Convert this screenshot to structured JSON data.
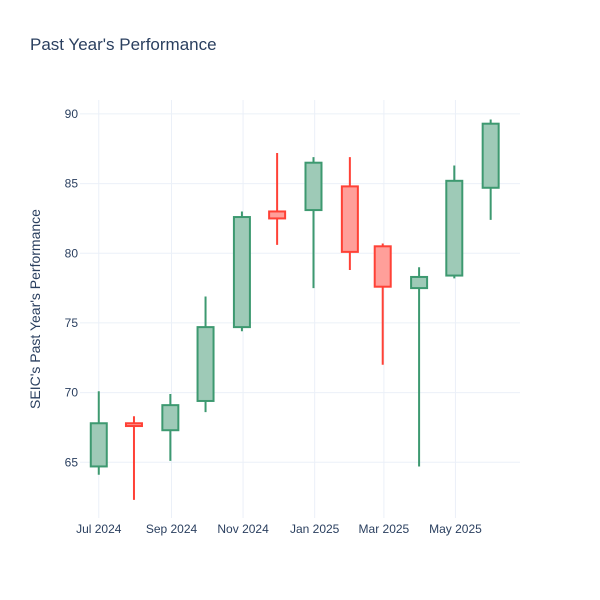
{
  "chart_data": {
    "type": "candlestick",
    "title": "Past Year's Performance",
    "xlabel": "",
    "ylabel": "SEIC's Past Year's Performance",
    "ylim": [
      61,
      91
    ],
    "yticks": [
      65,
      70,
      75,
      80,
      85,
      90
    ],
    "xrange": [
      "2024-06-15",
      "2025-06-25"
    ],
    "xticks": [
      {
        "date": "2024-07-01",
        "label": "Jul 2024"
      },
      {
        "date": "2024-09-01",
        "label": "Sep 2024"
      },
      {
        "date": "2024-11-01",
        "label": "Nov 2024"
      },
      {
        "date": "2025-01-01",
        "label": "Jan 2025"
      },
      {
        "date": "2025-03-01",
        "label": "Mar 2025"
      },
      {
        "date": "2025-05-01",
        "label": "May 2025"
      }
    ],
    "candles": [
      {
        "date": "2024-07-01",
        "open": 64.7,
        "high": 70.1,
        "low": 64.1,
        "close": 67.8
      },
      {
        "date": "2024-07-31",
        "open": 67.8,
        "high": 68.3,
        "low": 62.3,
        "close": 67.6
      },
      {
        "date": "2024-08-31",
        "open": 67.3,
        "high": 69.9,
        "low": 65.1,
        "close": 69.1
      },
      {
        "date": "2024-09-30",
        "open": 69.4,
        "high": 76.9,
        "low": 68.6,
        "close": 74.7
      },
      {
        "date": "2024-10-31",
        "open": 74.7,
        "high": 83.0,
        "low": 74.4,
        "close": 82.6
      },
      {
        "date": "2024-11-30",
        "open": 83.0,
        "high": 87.2,
        "low": 80.6,
        "close": 82.5
      },
      {
        "date": "2024-12-31",
        "open": 83.1,
        "high": 86.9,
        "low": 77.5,
        "close": 86.5
      },
      {
        "date": "2025-01-31",
        "open": 84.8,
        "high": 86.9,
        "low": 78.8,
        "close": 80.1
      },
      {
        "date": "2025-02-28",
        "open": 80.5,
        "high": 80.7,
        "low": 72.0,
        "close": 77.6
      },
      {
        "date": "2025-03-31",
        "open": 77.5,
        "high": 79.0,
        "low": 64.7,
        "close": 78.3
      },
      {
        "date": "2025-04-30",
        "open": 78.4,
        "high": 86.3,
        "low": 78.2,
        "close": 85.2
      },
      {
        "date": "2025-05-31",
        "open": 84.7,
        "high": 89.6,
        "low": 82.4,
        "close": 89.3
      }
    ],
    "colors": {
      "increasing_line": "#3d9970",
      "increasing_fill": "#9ecab7",
      "decreasing_line": "#ff4136",
      "decreasing_fill": "#ff9f9a",
      "text": "#2a3f5f",
      "grid": "#ebf0f8"
    }
  }
}
